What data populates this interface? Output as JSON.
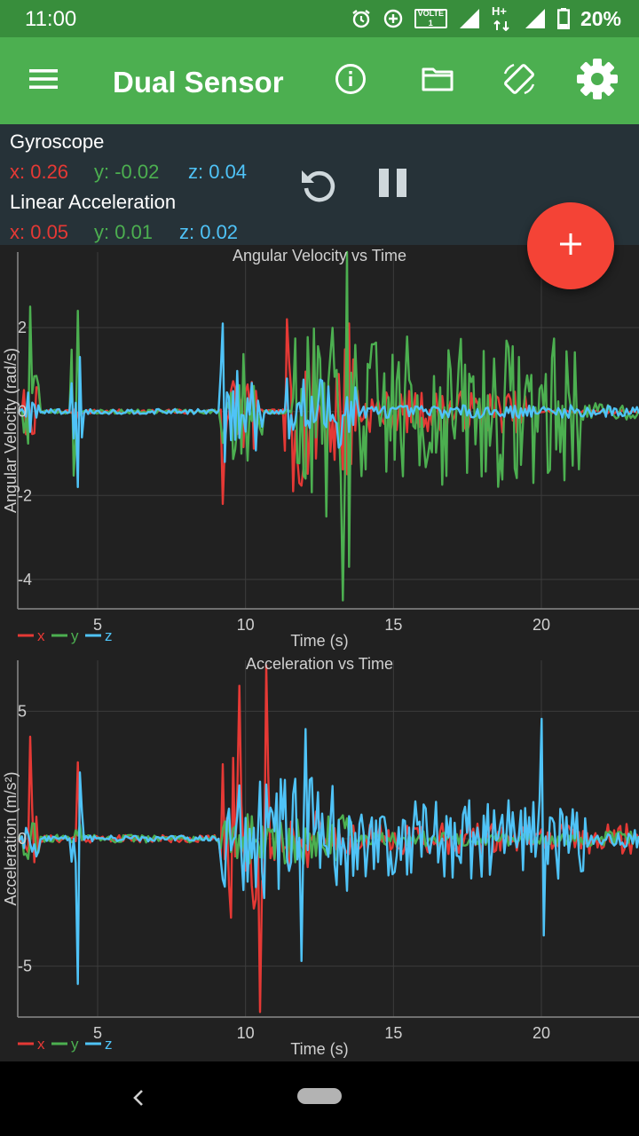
{
  "status_bar": {
    "time": "11:00",
    "volte_line1": "VOLTE",
    "volte_line2": "1",
    "network_type": "H+",
    "battery": "20%",
    "icons": [
      "alarm-icon",
      "data-saver-icon",
      "volte-icon",
      "signal-icon",
      "network-type-icon",
      "battery-icon"
    ]
  },
  "app_bar": {
    "title": "Dual Sensor",
    "icons": [
      "menu-icon",
      "info-icon",
      "folder-icon",
      "screen-rotation-icon",
      "settings-icon"
    ]
  },
  "readout": {
    "gyro_title": "Gyroscope",
    "gyro_x": "x: 0.26",
    "gyro_y": "y: -0.02",
    "gyro_z": "z: 0.04",
    "accel_title": "Linear Acceleration",
    "accel_x": "x: 0.05",
    "accel_y": "y: 0.01",
    "accel_z": "z: 0.02",
    "controls": [
      "reset-icon",
      "pause-icon"
    ]
  },
  "fab": {
    "icon": "plus-icon",
    "color": "#f44336"
  },
  "colors": {
    "x": "#e53935",
    "y": "#4caf50",
    "z": "#4fc3f7",
    "app_bar": "#4caf50",
    "status_bar": "#388e3c"
  },
  "chart_data": [
    {
      "type": "line",
      "title": "Angular Velocity vs Time",
      "xlabel": "Time (s)",
      "ylabel": "Angular Velocity (rad/s)",
      "xlim": [
        2.3,
        23.3
      ],
      "ylim": [
        -4.7,
        3.8
      ],
      "xticks": [
        5,
        10,
        15,
        20
      ],
      "yticks": [
        2,
        0,
        -2,
        -4
      ],
      "grid": true,
      "legend": "bottom-left",
      "seed": 7,
      "series": [
        {
          "name": "x",
          "color": "#e53935",
          "baseline_noise": 0.05,
          "bursts": [
            [
              2.5,
              3.0,
              0.6
            ],
            [
              4.2,
              4.4,
              0.3
            ],
            [
              9.1,
              10.4,
              1.0
            ],
            [
              11.3,
              13.8,
              1.8
            ],
            [
              13.8,
              19.5,
              0.5
            ]
          ],
          "peaks": [
            [
              9.2,
              -2.2
            ],
            [
              11.4,
              2.2
            ],
            [
              11.6,
              -1.9
            ],
            [
              13.5,
              2.1
            ]
          ]
        },
        {
          "name": "y",
          "color": "#4caf50",
          "baseline_noise": 0.05,
          "bursts": [
            [
              2.5,
              3.0,
              1.2
            ],
            [
              4.1,
              4.4,
              1.6
            ],
            [
              9.1,
              10.6,
              1.5
            ],
            [
              11.6,
              14.0,
              2.0
            ],
            [
              14.0,
              21.3,
              1.8
            ],
            [
              21.3,
              23.3,
              0.2
            ]
          ],
          "peaks": [
            [
              2.7,
              2.5
            ],
            [
              4.3,
              2.4
            ],
            [
              13.4,
              3.8
            ],
            [
              13.3,
              -4.5
            ],
            [
              13.5,
              -3.7
            ],
            [
              12.7,
              -2.5
            ]
          ]
        },
        {
          "name": "z",
          "color": "#4fc3f7",
          "baseline_noise": 0.06,
          "bursts": [
            [
              2.5,
              3.0,
              0.5
            ],
            [
              4.1,
              4.5,
              0.8
            ],
            [
              9.1,
              10.6,
              1.0
            ],
            [
              11.4,
              13.8,
              0.9
            ],
            [
              13.8,
              23.3,
              0.15
            ]
          ],
          "peaks": [
            [
              4.3,
              -1.8
            ],
            [
              4.4,
              1.3
            ],
            [
              9.2,
              2.1
            ],
            [
              9.3,
              -1.2
            ]
          ]
        }
      ]
    },
    {
      "type": "line",
      "title": "Acceleration vs Time",
      "xlabel": "Time (s)",
      "ylabel": "Acceleration (m/s²)",
      "xlim": [
        2.3,
        23.3
      ],
      "ylim": [
        -7,
        7
      ],
      "xticks": [
        5,
        10,
        15,
        20
      ],
      "yticks": [
        5,
        0,
        -5
      ],
      "grid": true,
      "legend": "bottom-left",
      "seed": 21,
      "series": [
        {
          "name": "x",
          "color": "#e53935",
          "baseline_noise": 0.15,
          "bursts": [
            [
              2.5,
              3.0,
              1.5
            ],
            [
              4.2,
              4.4,
              1.2
            ],
            [
              9.1,
              10.8,
              3.2
            ],
            [
              10.8,
              12.5,
              1.2
            ],
            [
              12.5,
              23.3,
              0.6
            ]
          ],
          "peaks": [
            [
              2.7,
              4.0
            ],
            [
              4.3,
              3.0
            ],
            [
              10.5,
              -6.8
            ],
            [
              10.7,
              6.8
            ],
            [
              9.8,
              6.0
            ]
          ]
        },
        {
          "name": "y",
          "color": "#4caf50",
          "baseline_noise": 0.15,
          "bursts": [
            [
              2.5,
              3.0,
              0.8
            ],
            [
              4.2,
              4.4,
              0.6
            ],
            [
              9.1,
              13.8,
              1.0
            ],
            [
              13.8,
              23.3,
              0.3
            ]
          ],
          "peaks": []
        },
        {
          "name": "z",
          "color": "#4fc3f7",
          "baseline_noise": 0.12,
          "bursts": [
            [
              2.5,
              3.0,
              0.8
            ],
            [
              4.1,
              4.5,
              1.2
            ],
            [
              9.1,
              13.5,
              2.5
            ],
            [
              13.5,
              17.0,
              1.5
            ],
            [
              17.0,
              21.5,
              1.6
            ],
            [
              21.5,
              23.3,
              0.4
            ]
          ],
          "peaks": [
            [
              4.3,
              -5.7
            ],
            [
              4.4,
              2.6
            ],
            [
              12.0,
              4.3
            ],
            [
              11.9,
              -4.8
            ],
            [
              20.0,
              4.7
            ],
            [
              20.1,
              -3.8
            ]
          ]
        }
      ]
    }
  ],
  "nav_bar": {
    "icons": [
      "back-icon",
      "home-pill-icon"
    ]
  }
}
